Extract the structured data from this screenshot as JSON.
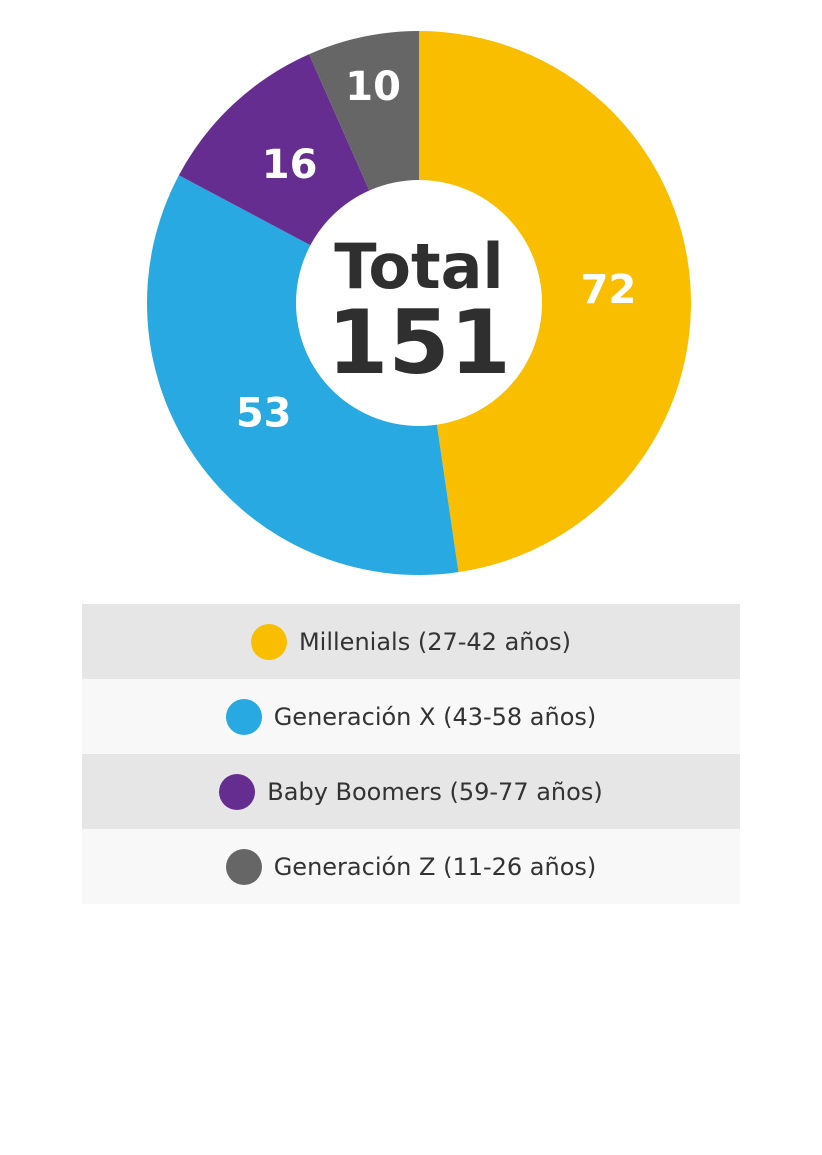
{
  "chart_data": {
    "type": "pie",
    "center": {
      "title": "Total",
      "value": "151"
    },
    "slices": [
      {
        "label": "Millenials (27-42 años)",
        "value": 72,
        "display": "72",
        "color": "#F9BE00"
      },
      {
        "label": "Generación X (43-58 años)",
        "value": 53,
        "display": "53",
        "color": "#29A9E1"
      },
      {
        "label": "Baby Boomers (59-77 años)",
        "value": 16,
        "display": "16",
        "color": "#662D91"
      },
      {
        "label": "Generación Z (11-26 años)",
        "value": 10,
        "display": "10",
        "color": "#666666"
      }
    ]
  },
  "legend": {
    "items": [
      {
        "label": "Millenials (27-42 años)",
        "color": "#F9BE00"
      },
      {
        "label": "Generación X (43-58 años)",
        "color": "#29A9E1"
      },
      {
        "label": "Baby Boomers (59-77 años)",
        "color": "#662D91"
      },
      {
        "label": "Generación Z (11-26 años)",
        "color": "#666666"
      }
    ]
  }
}
